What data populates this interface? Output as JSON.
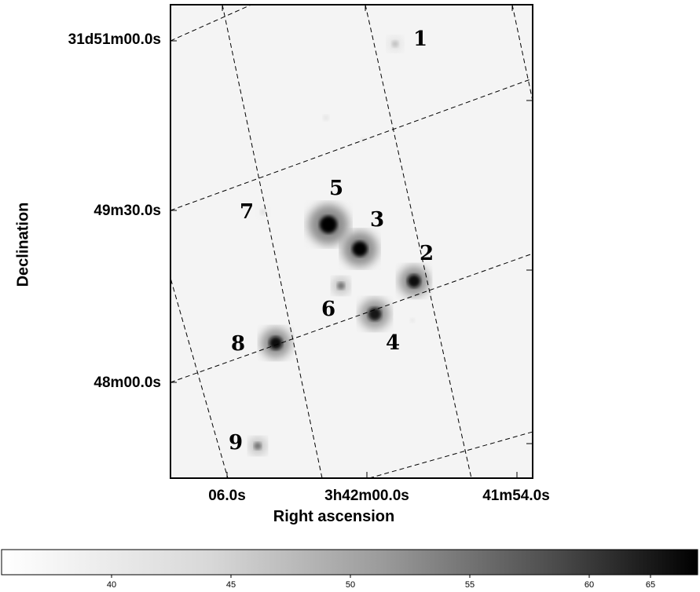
{
  "chart_data": {
    "type": "heatmap",
    "xlabel": "Right ascension",
    "ylabel": "Declination",
    "x_tick_labels": [
      "06.0s",
      "3h42m00.0s",
      "41m54.0s"
    ],
    "y_tick_labels": [
      "31d51m00.0s",
      "49m30.0s",
      "48m00.0s"
    ],
    "colorbar": {
      "orientation": "horizontal",
      "colormap": "white-to-black",
      "tick_labels": [
        "40",
        "45",
        "50",
        "55",
        "60",
        "65"
      ],
      "range": [
        35,
        68
      ]
    },
    "sources": [
      {
        "label": "1",
        "intensity": 0.25
      },
      {
        "label": "2",
        "intensity": 0.95
      },
      {
        "label": "3",
        "intensity": 1.0
      },
      {
        "label": "4",
        "intensity": 0.9
      },
      {
        "label": "5",
        "intensity": 1.0
      },
      {
        "label": "6",
        "intensity": 0.55
      },
      {
        "label": "7",
        "intensity": 0.12
      },
      {
        "label": "8",
        "intensity": 0.95
      },
      {
        "label": "9",
        "intensity": 0.55
      }
    ],
    "grid": "dashed RA/Dec coordinate grid (rotated)"
  }
}
